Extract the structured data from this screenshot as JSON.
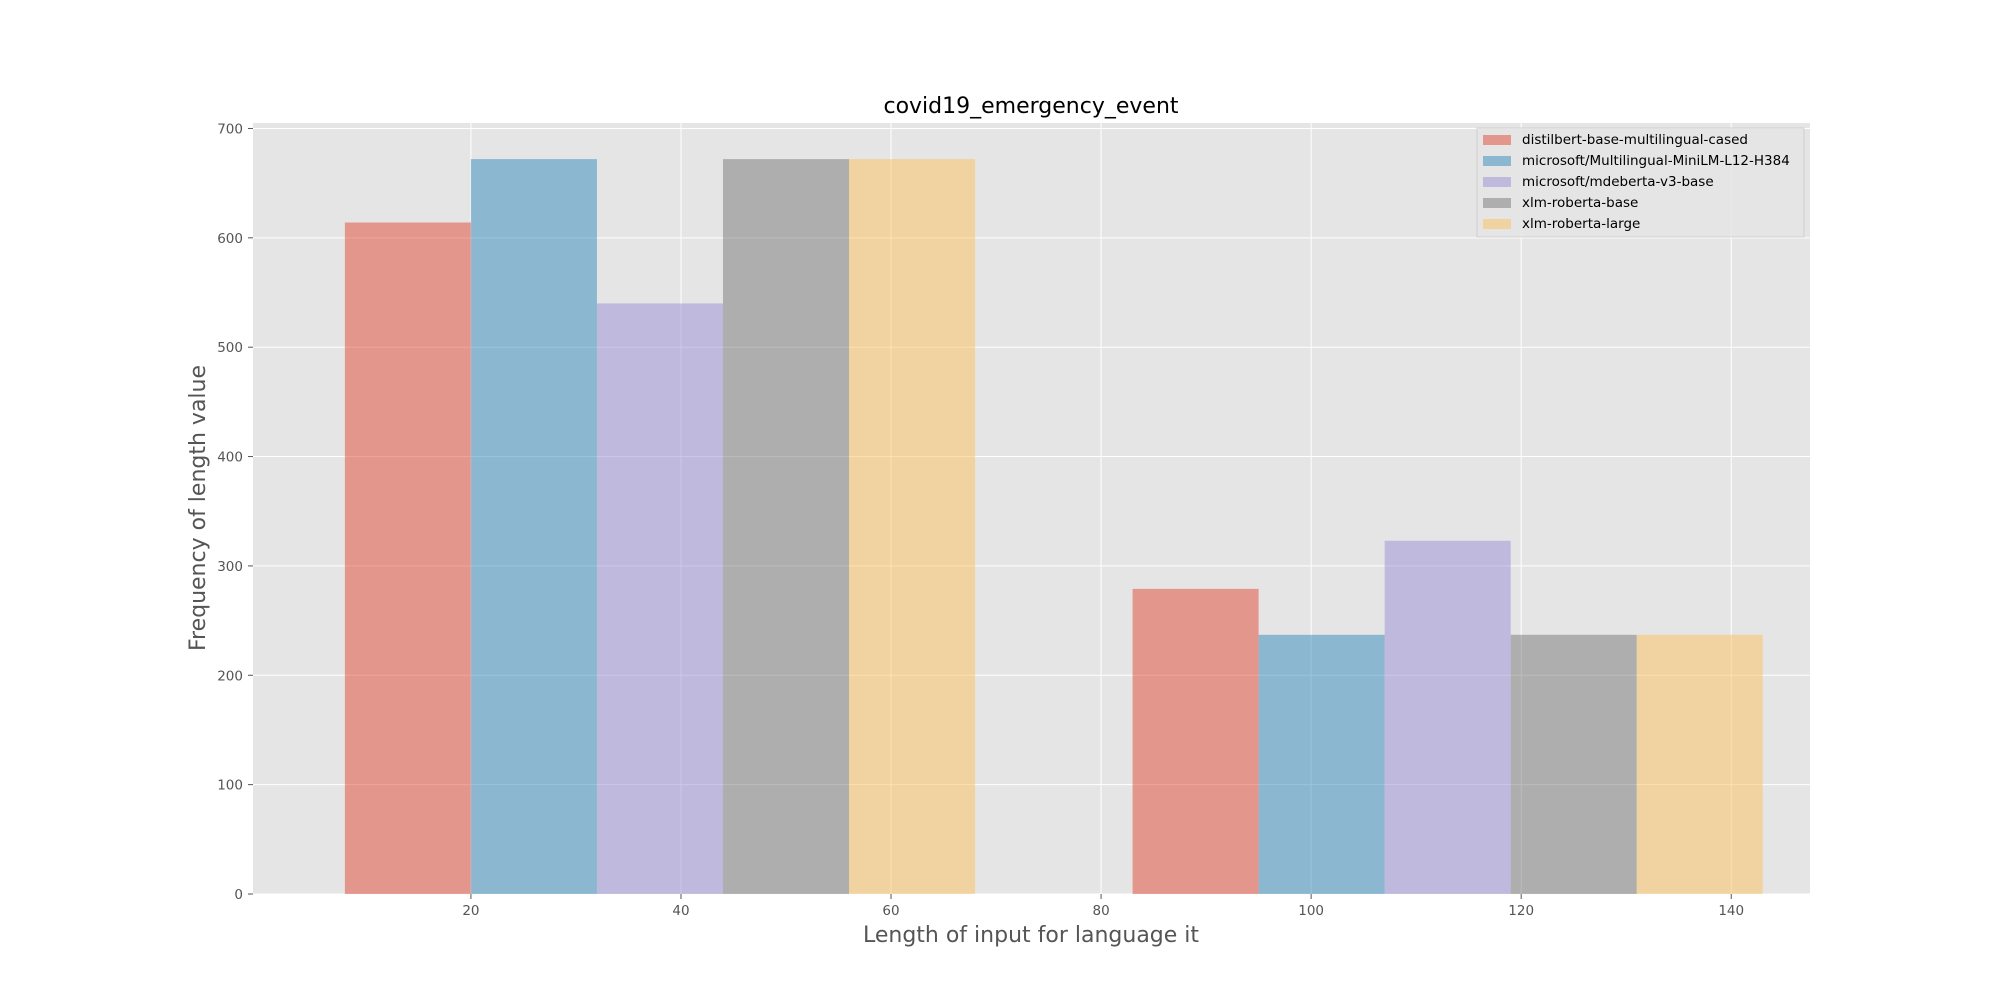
{
  "chart_data": {
    "type": "bar",
    "title": "covid19_emergency_event",
    "xlabel": "Length of input for language it",
    "ylabel": "Frequency of length value",
    "xlim": [
      -0.75,
      147.5
    ],
    "ylim": [
      0,
      705
    ],
    "xticks": [
      20,
      40,
      60,
      80,
      100,
      120,
      140
    ],
    "yticks": [
      0,
      100,
      200,
      300,
      400,
      500,
      600,
      700
    ],
    "grid": true,
    "legend_position": "top-right",
    "bar_width": 12,
    "series": [
      {
        "name": "distilbert-base-multilingual-cased",
        "color": "#E24A33",
        "bars": [
          {
            "x": 8,
            "value": 614
          },
          {
            "x": 83,
            "value": 279
          }
        ]
      },
      {
        "name": "microsoft/Multilingual-MiniLM-L12-H384",
        "color": "#348ABD",
        "bars": [
          {
            "x": 20,
            "value": 672
          },
          {
            "x": 95,
            "value": 237
          }
        ]
      },
      {
        "name": "microsoft/mdeberta-v3-base",
        "color": "#988ED5",
        "bars": [
          {
            "x": 32,
            "value": 540
          },
          {
            "x": 107,
            "value": 323
          }
        ]
      },
      {
        "name": "xlm-roberta-base",
        "color": "#777777",
        "bars": [
          {
            "x": 44,
            "value": 672
          },
          {
            "x": 119,
            "value": 237
          }
        ]
      },
      {
        "name": "xlm-roberta-large",
        "color": "#FBC15E",
        "bars": [
          {
            "x": 56,
            "value": 672
          },
          {
            "x": 131,
            "value": 237
          }
        ]
      }
    ]
  }
}
